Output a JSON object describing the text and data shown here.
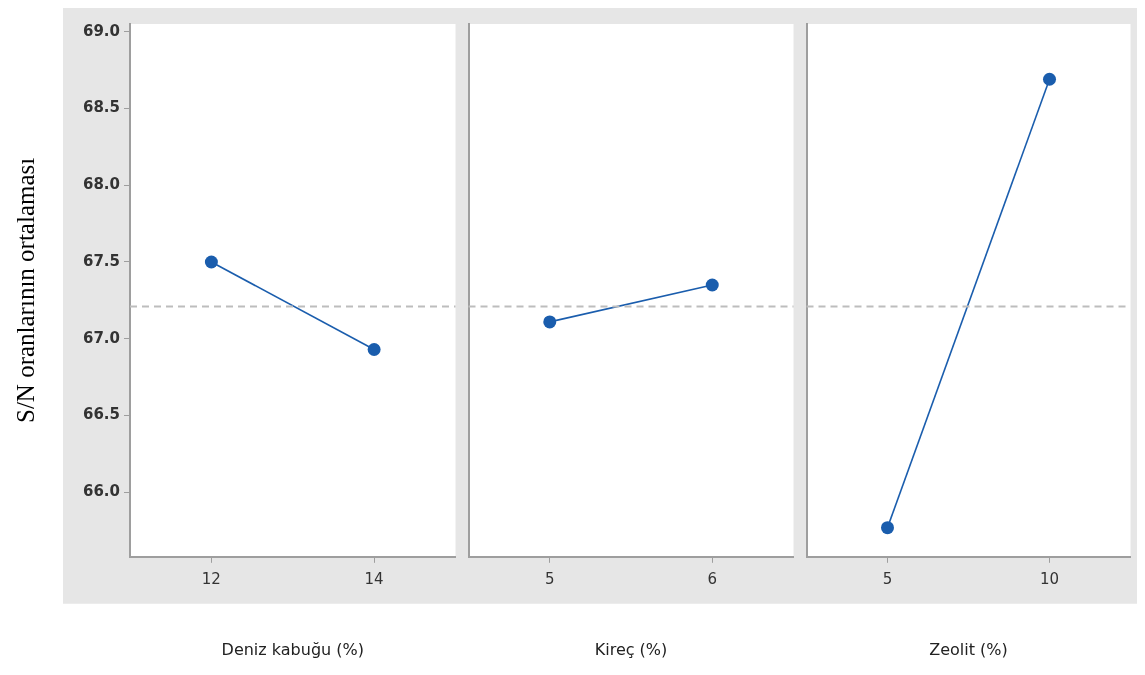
{
  "chart_data": [
    {
      "type": "line",
      "categories": [
        "12",
        "14"
      ],
      "xlabel": "Deniz kabuğu (%)",
      "ylabel": "S/N oranlarının ortalaması",
      "marker": "circle",
      "ylim": [
        65.58,
        69.05
      ],
      "yticks": [
        {
          "value": 66,
          "label": "66.0"
        },
        {
          "value": 66.5,
          "label": "66.5"
        },
        {
          "value": 67,
          "label": "67.0"
        },
        {
          "value": 67.5,
          "label": "67.5"
        },
        {
          "value": 68,
          "label": "68.0"
        },
        {
          "value": 68.5,
          "label": "68.5"
        },
        {
          "value": 69,
          "label": "69.0"
        }
      ],
      "series": [
        {
          "color": "#1a5dad",
          "values": [
            67.5,
            66.93
          ]
        }
      ],
      "ref_lines": [
        {
          "axis": "y",
          "value": 67.21,
          "color": "#bdbdbd",
          "line_style": "dashed"
        }
      ]
    },
    {
      "type": "line",
      "categories": [
        "5",
        "6"
      ],
      "xlabel": "Kireç (%)",
      "marker": "circle",
      "tick_labels": "x",
      "ylim": [
        65.58,
        69.05
      ],
      "series": [
        {
          "color": "#1a5dad",
          "values": [
            67.11,
            67.35
          ]
        }
      ],
      "ref_lines": [
        {
          "axis": "y",
          "value": 67.21,
          "color": "#bdbdbd",
          "line_style": "dashed"
        }
      ]
    },
    {
      "type": "line",
      "categories": [
        "5",
        "10"
      ],
      "xlabel": "Zeolit (%)",
      "marker": "circle",
      "tick_labels": "x",
      "ylim": [
        65.58,
        69.05
      ],
      "series": [
        {
          "color": "#1a5dad",
          "values": [
            65.77,
            68.69
          ]
        }
      ],
      "ref_lines": [
        {
          "axis": "y",
          "value": 67.21,
          "color": "#bdbdbd",
          "line_style": "dashed"
        }
      ]
    }
  ]
}
